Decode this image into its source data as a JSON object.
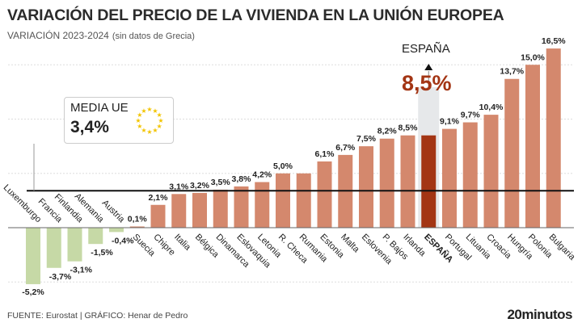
{
  "header": {
    "title": "VARIACIÓN DEL PRECIO DE LA VIVIENDA EN LA UNIÓN EUROPEA",
    "subtitle": "VARIACIÓN 2023-2024",
    "note": "(sin datos de Grecia)"
  },
  "footer": {
    "source": "FUENTE: Eurostat  |  GRÁFICO: Henar de Pedro",
    "logo": "20minutos"
  },
  "annotations": {
    "media_label": "MEDIA UE",
    "media_value": "3,4%",
    "media_numeric": 3.4,
    "highlight_label": "ESPAÑA",
    "highlight_value": "8,5%"
  },
  "colors": {
    "positive": "#d4886d",
    "negative": "#c6d9a6",
    "highlight": "#a33514",
    "average_line": "#111111"
  },
  "chart_data": {
    "type": "bar",
    "categories": [
      "Luxemburgo",
      "Francia",
      "Finlandia",
      "Alemania",
      "Austria",
      "Suecia",
      "Chipre",
      "Italia",
      "Bélgica",
      "Dinamarca",
      "Eslovaquia",
      "Letonia",
      "R. Checa",
      "Rumania",
      "Estonia",
      "Malta",
      "Eslovenia",
      "P. Bajos",
      "Irlanda",
      "ESPAÑA",
      "Portugal",
      "Lituania",
      "Croacia",
      "Hungría",
      "Polonia",
      "Bulgaria"
    ],
    "values": [
      -5.2,
      -3.7,
      -3.1,
      -1.5,
      -0.4,
      0.1,
      2.1,
      3.1,
      3.2,
      3.5,
      3.8,
      4.2,
      5.0,
      5.0,
      6.1,
      6.7,
      7.5,
      8.2,
      8.5,
      8.5,
      9.1,
      9.7,
      10.4,
      13.7,
      15.0,
      16.5
    ],
    "labels": [
      "-5,2%",
      "-3,7%",
      "-3,1%",
      "-1,5%",
      "-0,4%",
      "0,1%",
      "2,1%",
      "3,1%",
      "3,2%",
      "3,5%",
      "3,8%",
      "4,2%",
      "5,0%",
      "",
      "6,1%",
      "6,7%",
      "7,5%",
      "8,2%",
      "8,5%",
      "",
      "9,1%",
      "9,7%",
      "10,4%",
      "13,7%",
      "15,0%",
      "16,5%"
    ],
    "highlight": "ESPAÑA",
    "unit": "%",
    "ylim": [
      -6,
      17
    ],
    "grid": true,
    "reference_line": 3.4
  }
}
